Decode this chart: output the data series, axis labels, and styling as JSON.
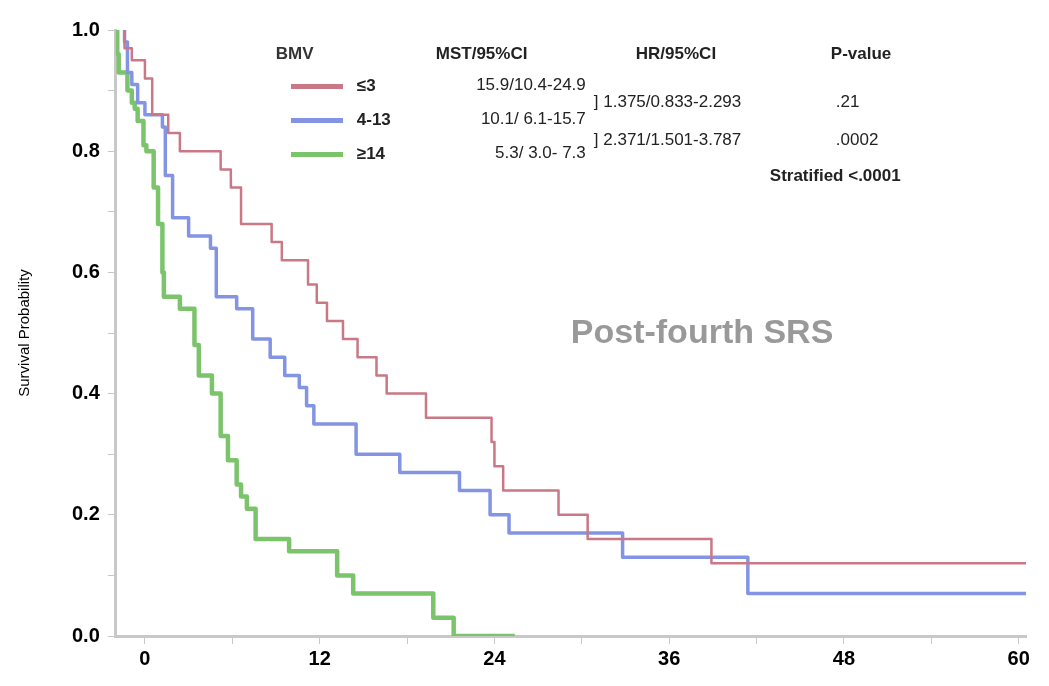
{
  "chart_data": {
    "type": "step",
    "ylabel": "Survival Probability",
    "legend_title": "BMV",
    "legend": "top",
    "grid": false,
    "marker": "none",
    "line_style": "solid",
    "xlim": [
      -2,
      60.5
    ],
    "xticks": [
      0,
      {
        "value": 6,
        "label": null
      },
      12,
      {
        "value": 18,
        "label": null
      },
      24,
      {
        "value": 30,
        "label": null
      },
      36,
      {
        "value": 42,
        "label": null
      },
      48,
      {
        "value": 54,
        "label": null
      },
      60
    ],
    "ylim": [
      0,
      1
    ],
    "yticks": [
      {
        "value": 0,
        "label": "0.0"
      },
      {
        "value": 0.1,
        "label": null
      },
      {
        "value": 0.2,
        "label": "0.2"
      },
      {
        "value": 0.3,
        "label": null
      },
      {
        "value": 0.4,
        "label": "0.4"
      },
      {
        "value": 0.5,
        "label": null
      },
      {
        "value": 0.6,
        "label": "0.6"
      },
      {
        "value": 0.7,
        "label": null
      },
      {
        "value": 0.8,
        "label": "0.8"
      },
      {
        "value": 0.9,
        "label": null
      },
      {
        "value": 1,
        "label": "1.0"
      }
    ],
    "series": [
      {
        "name": "≤3",
        "color": "#c97886",
        "x": [
          -1.4,
          -0.9,
          0,
          0.5,
          1.6,
          2.4,
          5.2,
          5.9,
          6.6,
          8.7,
          9.4,
          11.2,
          11.8,
          12.5,
          13.6,
          14.6,
          15.9,
          16.6,
          19.3,
          23.8,
          24,
          24.6,
          28.4,
          30.4,
          38.9,
          39.6,
          60.5
        ],
        "values": [
          1,
          0.97,
          0.95,
          0.92,
          0.86,
          0.83,
          0.8,
          0.77,
          0.74,
          0.68,
          0.65,
          0.62,
          0.58,
          0.55,
          0.52,
          0.49,
          0.46,
          0.43,
          0.4,
          0.36,
          0.32,
          0.28,
          0.24,
          0.2,
          0.16,
          0.12,
          0.12
        ]
      },
      {
        "name": "4-13",
        "color": "#8494e4",
        "x": [
          -1.4,
          -1.2,
          -0.9,
          -0.5,
          0,
          1.2,
          1.4,
          1.9,
          3,
          4.5,
          4.9,
          6.3,
          7.4,
          8.6,
          9.6,
          10.6,
          11.1,
          11.6,
          14.5,
          17.5,
          21.6,
          23.7,
          25,
          32.8,
          41.4,
          46.1,
          60.5
        ],
        "values": [
          1,
          0.98,
          0.93,
          0.91,
          0.88,
          0.86,
          0.84,
          0.76,
          0.69,
          0.66,
          0.64,
          0.56,
          0.54,
          0.49,
          0.46,
          0.43,
          0.41,
          0.38,
          0.35,
          0.3,
          0.27,
          0.24,
          0.2,
          0.17,
          0.13,
          0.07,
          0.07
        ]
      },
      {
        "name": "≥14",
        "color": "#7cc46c",
        "x": [
          -1.9,
          -1.8,
          -1.2,
          -0.9,
          -0.7,
          -0.5,
          -0.1,
          0.1,
          0.6,
          0.9,
          1.2,
          1.3,
          2.4,
          3.4,
          3.7,
          4.6,
          5.2,
          5.7,
          6.3,
          6.6,
          7,
          7.6,
          9.9,
          13.2,
          14.3,
          19.8,
          21.2,
          25.4
        ],
        "values": [
          1,
          0.96,
          0.93,
          0.9,
          0.88,
          0.87,
          0.85,
          0.81,
          0.8,
          0.74,
          0.68,
          0.6,
          0.56,
          0.54,
          0.48,
          0.43,
          0.4,
          0.33,
          0.29,
          0.25,
          0.23,
          0.21,
          0.16,
          0.14,
          0.1,
          0.07,
          0.03,
          0
        ]
      }
    ],
    "annotations": [
      "MST/95%CI",
      "HR/95%CI",
      "P-value",
      "15.9/10.4-24.9",
      "10.1/ 6.1-15.7",
      "5.3/ 3.0- 7.3",
      "] 1.375/0.833-2.293",
      ".21",
      "] 2.371/1.501-3.787",
      ".0002",
      "Stratified <.0001",
      "Post-fourth SRS"
    ]
  }
}
